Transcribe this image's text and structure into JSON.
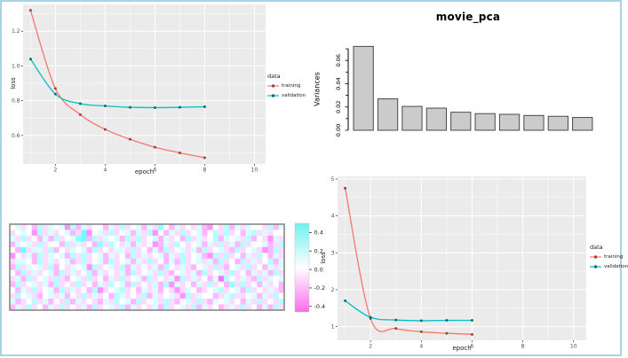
{
  "page": {
    "border_color": "#a9d5e2",
    "background": "#ffffff"
  },
  "chart_data": [
    {
      "id": "loss_top",
      "type": "line",
      "xlabel": "epoch",
      "ylabel": "loss",
      "legend_title": "data",
      "x": [
        1,
        2,
        3,
        4,
        5,
        6,
        7,
        8
      ],
      "series": [
        {
          "name": "training",
          "color": "#F8766D",
          "point_color": "#9c443e",
          "values": [
            1.32,
            0.87,
            0.72,
            0.635,
            0.578,
            0.532,
            0.5,
            0.472
          ]
        },
        {
          "name": "validation",
          "color": "#00BFC4",
          "point_color": "#0b6f73",
          "values": [
            1.04,
            0.838,
            0.783,
            0.77,
            0.762,
            0.76,
            0.762,
            0.765
          ]
        }
      ],
      "xlim": [
        0.7,
        10.45
      ],
      "ylim": [
        0.436,
        1.354
      ],
      "xticks": {
        "labels": [
          "2",
          "4",
          "6",
          "8",
          "10"
        ],
        "values": [
          2,
          4,
          6,
          8,
          10
        ],
        "minor": [
          1,
          3,
          5,
          7,
          9
        ]
      },
      "yticks": {
        "labels": [
          "0.6",
          "0.8",
          "1.0",
          "1.2"
        ],
        "values": [
          0.6,
          0.8,
          1.0,
          1.2
        ],
        "minor": [
          0.5,
          0.7,
          0.9,
          1.1,
          1.3
        ]
      },
      "panel_bg": "#EBEBEB",
      "grid_color": "#FFFFFF",
      "tick_text_color": "#4d4d4d"
    },
    {
      "id": "movie_pca",
      "type": "bar",
      "title": "movie_pca",
      "ylabel": "Variances",
      "values": [
        0.072,
        0.027,
        0.0205,
        0.019,
        0.0155,
        0.0143,
        0.0137,
        0.0127,
        0.012,
        0.011
      ],
      "yticks": {
        "labels": [
          "0.00",
          "0.02",
          "0.04",
          "0.06"
        ],
        "values": [
          0,
          0.02,
          0.04,
          0.06
        ],
        "minor": [
          0.01,
          0.03,
          0.05,
          0.07
        ]
      },
      "bar_fill": "#CBCBCB",
      "bar_stroke": "#4a4a4a",
      "axis_color": "#000000",
      "tick_text_color": "#000000"
    },
    {
      "id": "weights_heatmap",
      "type": "heatmap",
      "rows": 15,
      "cols": 50,
      "value_encoding": "each digit d maps to value (d-4)/10, range -0.4..0.4",
      "cells": [
        "45342635451625344253634525374253435214362535443625",
        "34541635345238145363452536142536345246363425635344",
        "53634252634578263545263634525342635346254536243153",
        "25453634426353427364352534125364345253635263445236",
        "42835536243545263435536342526345352634532634531263",
        "14352635452636345253426353452536345216363425364253",
        "35542635345236345263452536342526345352634263534625",
        "26354536243545163453625343526435324536324536342535",
        "42635345263534625343526345363245352634536342535263",
        "35263453632453634253634526343516353425064353263545",
        "26345352634363425364526343526153425363427363425342",
        "42536345263534261345634253524313542345634526343532",
        "36453245352436353426534362534531635442356334525364",
        "52346352436253432536452634536324536325453425363436",
        "25363425363435263453625343526345362534235363425263"
      ],
      "colorbar": {
        "tick_labels": [
          "0.4",
          "0.2",
          "0.0",
          "-0.2",
          "-0.4"
        ],
        "tick_values": [
          0.4,
          0.2,
          0.0,
          -0.2,
          -0.4
        ],
        "top_color": "#6FF0F0",
        "mid_color": "#FFFFFF",
        "bottom_color": "#FA6CEC"
      },
      "frame_color": "#808080"
    },
    {
      "id": "loss_bottom",
      "type": "line",
      "xlabel": "epoch",
      "ylabel": "loss",
      "legend_title": "data",
      "x": [
        1,
        2,
        3,
        4,
        5,
        6
      ],
      "series": [
        {
          "name": "training",
          "color": "#F8766D",
          "point_color": "#9c443e",
          "values": [
            4.75,
            1.22,
            0.95,
            0.86,
            0.82,
            0.79
          ]
        },
        {
          "name": "validation",
          "color": "#00BFC4",
          "point_color": "#0b6f73",
          "values": [
            1.7,
            1.25,
            1.18,
            1.16,
            1.17,
            1.17
          ]
        }
      ],
      "xlim": [
        0.7,
        10.5
      ],
      "ylim": [
        0.63,
        5.07
      ],
      "xticks": {
        "labels": [
          "2",
          "4",
          "6",
          "8",
          "10"
        ],
        "values": [
          2,
          4,
          6,
          8,
          10
        ],
        "minor": [
          1,
          3,
          5,
          7,
          9
        ]
      },
      "yticks": {
        "labels": [
          "1",
          "2",
          "3",
          "4",
          "5"
        ],
        "values": [
          1,
          2,
          3,
          4,
          5
        ],
        "minor": [
          1.5,
          2.5,
          3.5,
          4.5
        ]
      },
      "panel_bg": "#EBEBEB",
      "grid_color": "#FFFFFF",
      "tick_text_color": "#4d4d4d"
    }
  ]
}
